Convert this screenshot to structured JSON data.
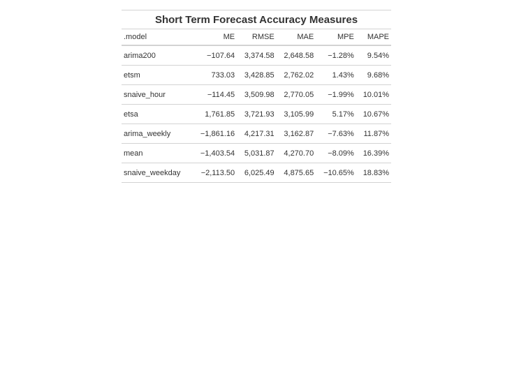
{
  "table": {
    "title": "Short Term Forecast Accuracy Measures",
    "columns": [
      ".model",
      "ME",
      "RMSE",
      "MAE",
      "MPE",
      "MAPE"
    ],
    "rows": [
      [
        "arima200",
        "−107.64",
        "3,374.58",
        "2,648.58",
        "−1.28%",
        "9.54%"
      ],
      [
        "etsm",
        "733.03",
        "3,428.85",
        "2,762.02",
        "1.43%",
        "9.68%"
      ],
      [
        "snaive_hour",
        "−114.45",
        "3,509.98",
        "2,770.05",
        "−1.99%",
        "10.01%"
      ],
      [
        "etsa",
        "1,761.85",
        "3,721.93",
        "3,105.99",
        "5.17%",
        "10.67%"
      ],
      [
        "arima_weekly",
        "−1,861.16",
        "4,217.31",
        "3,162.87",
        "−7.63%",
        "11.87%"
      ],
      [
        "mean",
        "−1,403.54",
        "5,031.87",
        "4,270.70",
        "−8.09%",
        "16.39%"
      ],
      [
        "snaive_weekday",
        "−2,113.50",
        "6,025.49",
        "4,875.65",
        "−10.65%",
        "18.83%"
      ]
    ]
  }
}
